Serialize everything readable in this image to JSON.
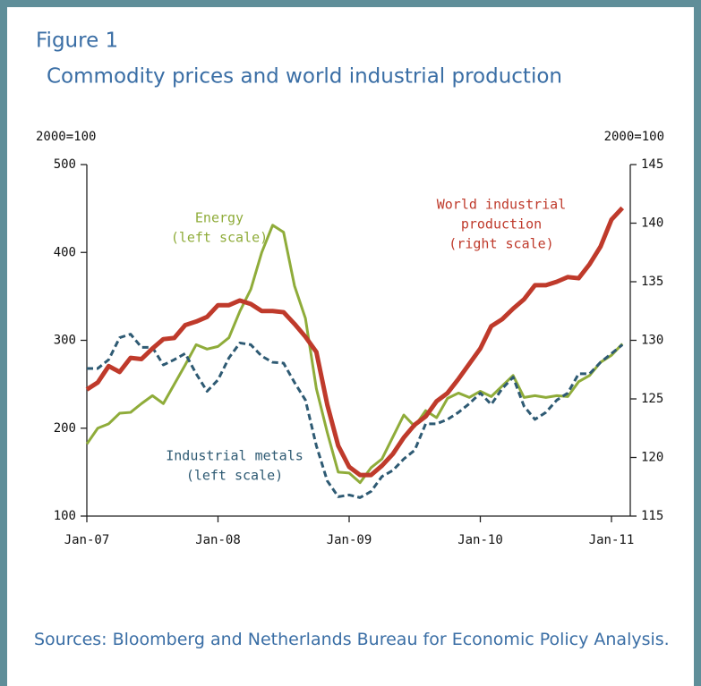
{
  "chart_data": {
    "type": "line",
    "title": "Figure 1",
    "subtitle": "Commodity prices and world industrial production",
    "y_label": "2000=100",
    "y2_label": "2000=100",
    "categories": [
      "Jan-07",
      null,
      null,
      null,
      null,
      null,
      null,
      null,
      null,
      null,
      null,
      null,
      "Jan-08",
      null,
      null,
      null,
      null,
      null,
      null,
      null,
      null,
      null,
      null,
      null,
      "Jan-09",
      null,
      null,
      null,
      null,
      null,
      null,
      null,
      null,
      null,
      null,
      null,
      "Jan-10",
      null,
      null,
      null,
      null,
      null,
      null,
      null,
      null,
      null,
      null,
      null,
      "Jan-11",
      null
    ],
    "ylim": [
      100,
      500
    ],
    "yticks": [
      100,
      200,
      300,
      400,
      500
    ],
    "y2lim": [
      115,
      145
    ],
    "y2ticks": [
      115,
      120,
      125,
      130,
      135,
      140,
      145
    ],
    "series": [
      {
        "name": "Energy",
        "color": "#8fac3a",
        "dash": false,
        "axis": "y",
        "values": [
          182,
          200,
          205,
          217,
          218,
          228,
          237,
          228,
          250,
          272,
          295,
          290,
          293,
          303,
          333,
          358,
          400,
          431,
          423,
          362,
          325,
          245,
          195,
          150,
          149,
          138,
          155,
          165,
          190,
          215,
          202,
          220,
          212,
          234,
          240,
          235,
          242,
          236,
          248,
          260,
          235,
          237,
          235,
          237,
          236,
          253,
          260,
          275,
          283,
          296
        ]
      },
      {
        "name": "Industrial metals",
        "color": "#2e5a73",
        "dash": true,
        "axis": "y",
        "values": [
          268,
          268,
          278,
          303,
          307,
          292,
          292,
          272,
          278,
          285,
          262,
          242,
          255,
          280,
          297,
          295,
          282,
          275,
          274,
          252,
          232,
          180,
          140,
          122,
          124,
          121,
          128,
          145,
          152,
          165,
          175,
          205,
          205,
          210,
          218,
          228,
          240,
          227,
          245,
          258,
          225,
          210,
          218,
          232,
          240,
          262,
          262,
          275,
          285,
          295
        ]
      },
      {
        "name": "World industrial production",
        "color": "#bf3a2b",
        "dash": false,
        "axis": "y2",
        "values": [
          125.8,
          126.4,
          127.8,
          127.3,
          128.5,
          128.4,
          129.3,
          130.1,
          130.2,
          131.3,
          131.6,
          132.0,
          133.0,
          133.0,
          133.4,
          133.1,
          132.5,
          132.5,
          132.4,
          131.4,
          130.3,
          129.0,
          124.5,
          121.0,
          119.2,
          118.5,
          118.5,
          119.3,
          120.3,
          121.7,
          122.8,
          123.5,
          124.8,
          125.5,
          126.7,
          128.0,
          129.3,
          131.2,
          131.8,
          132.7,
          133.5,
          134.7,
          134.7,
          135.0,
          135.4,
          135.3,
          136.5,
          138.0,
          140.3,
          141.3
        ]
      }
    ],
    "annotations": [
      {
        "lines": [
          "Energy",
          "(left scale)"
        ],
        "color": "#8fac3a"
      },
      {
        "lines": [
          "Industrial metals",
          "(left scale)"
        ],
        "color": "#2e5a73"
      },
      {
        "lines": [
          "World industrial",
          "production",
          "(right scale)"
        ],
        "color": "#bf3a2b"
      }
    ],
    "source": "Sources: Bloomberg and Netherlands Bureau for Economic Policy Analysis."
  }
}
